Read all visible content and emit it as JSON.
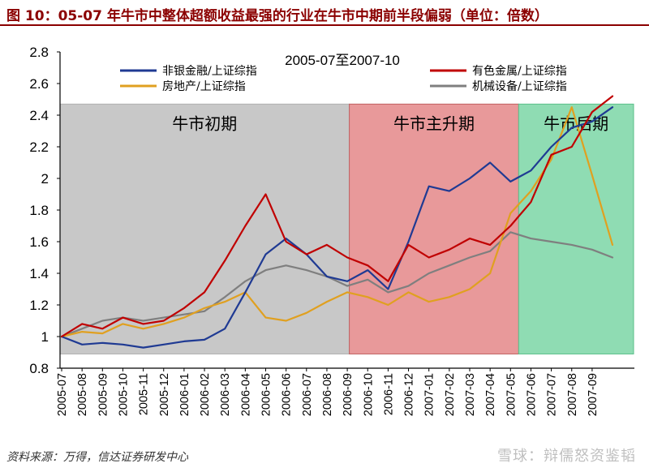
{
  "figure_title": "图 10：05-07 年牛市中整体超额收益最强的行业在牛市中期前半段偏弱（单位：倍数）",
  "source_note": "资料来源：万得，信达证券研发中心",
  "watermark": "雪球：辩儒怒资鉴韬",
  "chart_data": {
    "type": "line",
    "title": "2005-07至2007-10",
    "ylim": [
      0.8,
      2.8
    ],
    "yticks": [
      0.8,
      1,
      1.2,
      1.4,
      1.6,
      1.8,
      2,
      2.2,
      2.4,
      2.6,
      2.8
    ],
    "ytick_labels": [
      "0.8",
      "1",
      "1.2",
      "1.4",
      "1.6",
      "1.8",
      "2",
      "2.2",
      "2.4",
      "2.6",
      "2.8"
    ],
    "categories": [
      "2005-07",
      "2005-08",
      "2005-09",
      "2005-10",
      "2005-11",
      "2005-12",
      "2006-01",
      "2006-02",
      "2006-03",
      "2006-04",
      "2006-05",
      "2006-06",
      "2006-07",
      "2006-08",
      "2006-09",
      "2006-10",
      "2006-11",
      "2006-12",
      "2007-01",
      "2007-02",
      "2007-03",
      "2007-04",
      "2007-05",
      "2007-06",
      "2007-07",
      "2007-08",
      "2007-09"
    ],
    "phases": [
      {
        "name": "牛市初期",
        "from": 0,
        "to": 14.1,
        "color": "#c8c8c8"
      },
      {
        "name": "牛市主升期",
        "from": 14.1,
        "to": 22.4,
        "color": "#e8999a"
      },
      {
        "name": "牛市后期",
        "from": 22.4,
        "to": 27.0,
        "color": "#8fdcb3"
      }
    ],
    "legend": [
      "非银金融/上证综指",
      "有色金属/上证综指",
      "房地产/上证综指",
      "机械设备/上证综指"
    ],
    "series": [
      {
        "name": "非银金融/上证综指",
        "color": "#1f3a93",
        "x": [
          0,
          1,
          2,
          3,
          4,
          5,
          6,
          7,
          8,
          9,
          10,
          11,
          12,
          13,
          14,
          15,
          16,
          17,
          18,
          19,
          20,
          21,
          22,
          23,
          24,
          25,
          26,
          27
        ],
        "y": [
          1.0,
          0.95,
          0.96,
          0.95,
          0.93,
          0.95,
          0.97,
          0.98,
          1.05,
          1.28,
          1.52,
          1.62,
          1.52,
          1.38,
          1.35,
          1.42,
          1.3,
          1.6,
          1.95,
          1.92,
          2.0,
          2.1,
          1.98,
          2.05,
          2.2,
          2.32,
          2.36,
          2.45
        ]
      },
      {
        "name": "有色金属/上证综指",
        "color": "#c00000",
        "x": [
          0,
          1,
          2,
          3,
          4,
          5,
          6,
          7,
          8,
          9,
          10,
          11,
          12,
          13,
          14,
          15,
          16,
          17,
          18,
          19,
          20,
          21,
          22,
          23,
          24,
          25,
          26,
          27
        ],
        "y": [
          1.0,
          1.08,
          1.05,
          1.12,
          1.08,
          1.1,
          1.18,
          1.28,
          1.48,
          1.7,
          1.9,
          1.6,
          1.52,
          1.58,
          1.5,
          1.45,
          1.35,
          1.58,
          1.5,
          1.55,
          1.62,
          1.58,
          1.7,
          1.85,
          2.15,
          2.2,
          2.42,
          2.52
        ]
      },
      {
        "name": "房地产/上证综指",
        "color": "#e0a020",
        "x": [
          0,
          1,
          2,
          3,
          4,
          5,
          6,
          7,
          8,
          9,
          10,
          11,
          12,
          13,
          14,
          15,
          16,
          17,
          18,
          19,
          20,
          21,
          22,
          23,
          24,
          25,
          26,
          27
        ],
        "y": [
          1.0,
          1.03,
          1.02,
          1.08,
          1.05,
          1.08,
          1.12,
          1.18,
          1.22,
          1.28,
          1.12,
          1.1,
          1.15,
          1.22,
          1.28,
          1.25,
          1.2,
          1.28,
          1.22,
          1.25,
          1.3,
          1.4,
          1.78,
          1.92,
          2.12,
          2.45,
          2.02,
          1.58
        ]
      },
      {
        "name": "机械设备/上证综指",
        "color": "#7f7f7f",
        "x": [
          0,
          1,
          2,
          3,
          4,
          5,
          6,
          7,
          8,
          9,
          10,
          11,
          12,
          13,
          14,
          15,
          16,
          17,
          18,
          19,
          20,
          21,
          22,
          23,
          24,
          25,
          26,
          27
        ],
        "y": [
          1.0,
          1.05,
          1.1,
          1.12,
          1.1,
          1.12,
          1.14,
          1.16,
          1.25,
          1.35,
          1.42,
          1.45,
          1.42,
          1.38,
          1.32,
          1.36,
          1.28,
          1.32,
          1.4,
          1.45,
          1.5,
          1.54,
          1.66,
          1.62,
          1.6,
          1.58,
          1.55,
          1.5
        ]
      }
    ]
  }
}
